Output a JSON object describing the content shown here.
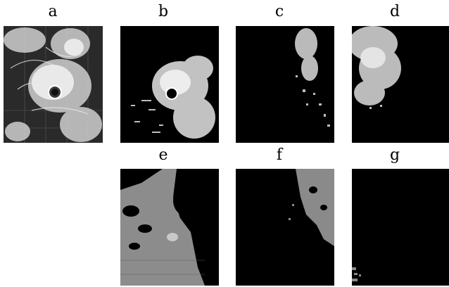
{
  "figure": {
    "panels": [
      {
        "id": "a",
        "label": "a"
      },
      {
        "id": "b",
        "label": "b"
      },
      {
        "id": "c",
        "label": "c"
      },
      {
        "id": "d",
        "label": "d"
      },
      {
        "id": "e",
        "label": "e"
      },
      {
        "id": "f",
        "label": "f"
      },
      {
        "id": "g",
        "label": "g"
      }
    ]
  }
}
